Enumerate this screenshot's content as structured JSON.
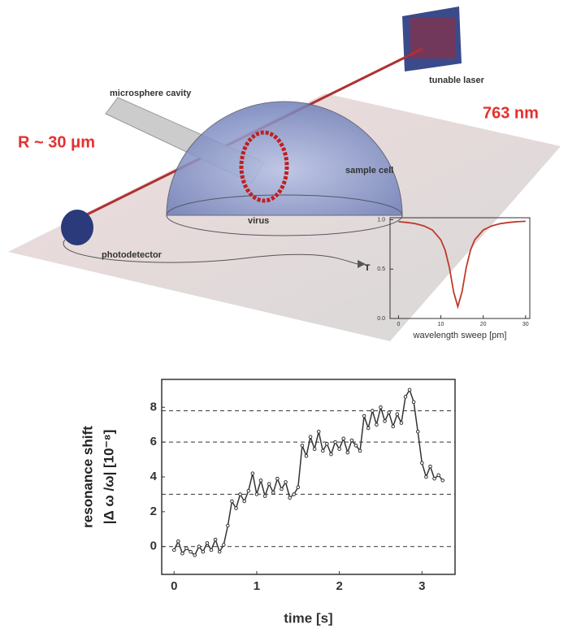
{
  "diagram": {
    "labels": {
      "laser": "tunable laser",
      "wavelength": "763 nm",
      "cavity": "microsphere cavity",
      "radius": "R ~ 30 μm",
      "sample_cell": "sample cell",
      "virus": "virus",
      "photodetector": "photodetector"
    }
  },
  "chart_data": [
    {
      "type": "line",
      "y_label": [
        "T"
      ],
      "x_label": "wavelength sweep [pm]",
      "x": [
        0,
        2,
        4,
        6,
        8,
        10,
        11,
        12,
        13,
        14,
        15,
        16,
        17,
        18,
        20,
        22,
        24,
        26,
        28,
        30
      ],
      "values": [
        0.98,
        0.972,
        0.96,
        0.937,
        0.896,
        0.796,
        0.692,
        0.518,
        0.271,
        0.12,
        0.271,
        0.518,
        0.692,
        0.796,
        0.896,
        0.937,
        0.96,
        0.972,
        0.98,
        0.984
      ],
      "color": "#c0392b",
      "xlim": [
        -2,
        31
      ],
      "xticks": [
        0,
        10,
        20,
        30
      ],
      "ylim": [
        0,
        1.02
      ],
      "yticks": [
        {
          "value": 0,
          "label": "0.0"
        },
        {
          "value": 0.5,
          "label": "0.5"
        },
        {
          "value": 1,
          "label": "1.0"
        }
      ]
    },
    {
      "type": "line",
      "y_label": [
        "resonance shift",
        "|Δ ω /ω|  [10⁻⁸]"
      ],
      "x_label": "time [s]",
      "x": [
        0,
        0.05,
        0.1,
        0.15,
        0.2,
        0.25,
        0.3,
        0.35,
        0.4,
        0.45,
        0.5,
        0.55,
        0.6,
        0.65,
        0.7,
        0.75,
        0.8,
        0.85,
        0.9,
        0.95,
        1,
        1.05,
        1.1,
        1.15,
        1.2,
        1.25,
        1.3,
        1.35,
        1.4,
        1.45,
        1.5,
        1.55,
        1.6,
        1.65,
        1.7,
        1.75,
        1.8,
        1.85,
        1.9,
        1.95,
        2,
        2.05,
        2.1,
        2.15,
        2.2,
        2.25,
        2.3,
        2.35,
        2.4,
        2.45,
        2.5,
        2.55,
        2.6,
        2.65,
        2.7,
        2.75,
        2.8,
        2.85,
        2.9,
        2.95,
        3,
        3.05,
        3.1,
        3.15,
        3.2,
        3.25
      ],
      "values": [
        -0.2,
        0.3,
        -0.4,
        -0.1,
        -0.3,
        -0.5,
        0,
        -0.3,
        0.2,
        -0.2,
        0.4,
        -0.3,
        0.1,
        1.2,
        2.6,
        2.2,
        3,
        2.6,
        3.2,
        4.2,
        3,
        3.8,
        2.9,
        3.6,
        3.1,
        3.9,
        3.3,
        3.7,
        2.8,
        3,
        3.4,
        5.8,
        5.2,
        6.3,
        5.6,
        6.6,
        5.5,
        5.9,
        5.3,
        6,
        5.6,
        6.2,
        5.4,
        6.1,
        5.8,
        5.5,
        7.5,
        6.8,
        7.8,
        7,
        8,
        7.2,
        7.7,
        6.9,
        7.6,
        7.1,
        8.6,
        9,
        8.3,
        6.6,
        4.8,
        4,
        4.6,
        3.9,
        4.1,
        3.8
      ],
      "color": "#333333",
      "hlines": [
        0,
        3,
        6,
        7.8
      ],
      "xlim": [
        -0.15,
        3.4
      ],
      "xticks": [
        0,
        1,
        2,
        3
      ],
      "ylim": [
        -1.6,
        9.6
      ],
      "yticks": [
        0,
        2,
        4,
        6,
        8
      ]
    }
  ]
}
